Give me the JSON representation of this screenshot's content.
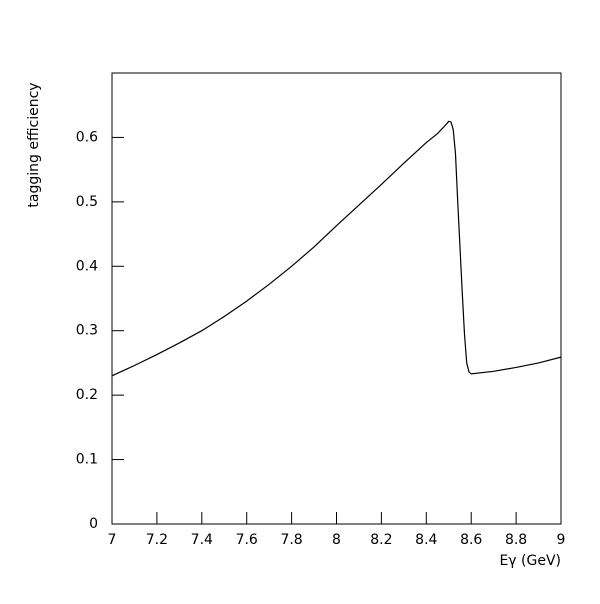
{
  "chart_data": {
    "type": "line",
    "xlabel": "Eγ (GeV)",
    "ylabel": "tagging efficiency",
    "x": [
      7.0,
      7.1,
      7.2,
      7.3,
      7.4,
      7.5,
      7.6,
      7.7,
      7.8,
      7.9,
      8.0,
      8.1,
      8.2,
      8.3,
      8.4,
      8.45,
      8.48,
      8.5,
      8.51,
      8.52,
      8.53,
      8.54,
      8.55,
      8.56,
      8.57,
      8.58,
      8.59,
      8.6,
      8.7,
      8.8,
      8.9,
      9.0
    ],
    "values": [
      0.23,
      0.246,
      0.263,
      0.281,
      0.3,
      0.322,
      0.346,
      0.372,
      0.4,
      0.43,
      0.463,
      0.495,
      0.527,
      0.56,
      0.592,
      0.606,
      0.617,
      0.625,
      0.624,
      0.612,
      0.575,
      0.5,
      0.43,
      0.36,
      0.295,
      0.25,
      0.236,
      0.233,
      0.237,
      0.243,
      0.25,
      0.259
    ],
    "color": "#000000",
    "xlim": [
      7,
      9
    ],
    "xticks": [
      7,
      7.2,
      7.4,
      7.6,
      7.8,
      8,
      8.2,
      8.4,
      8.6,
      8.8,
      9
    ],
    "ylim": [
      0,
      0.7
    ],
    "yticks": [
      0,
      0.1,
      0.2,
      0.3,
      0.4,
      0.5,
      0.6
    ]
  }
}
